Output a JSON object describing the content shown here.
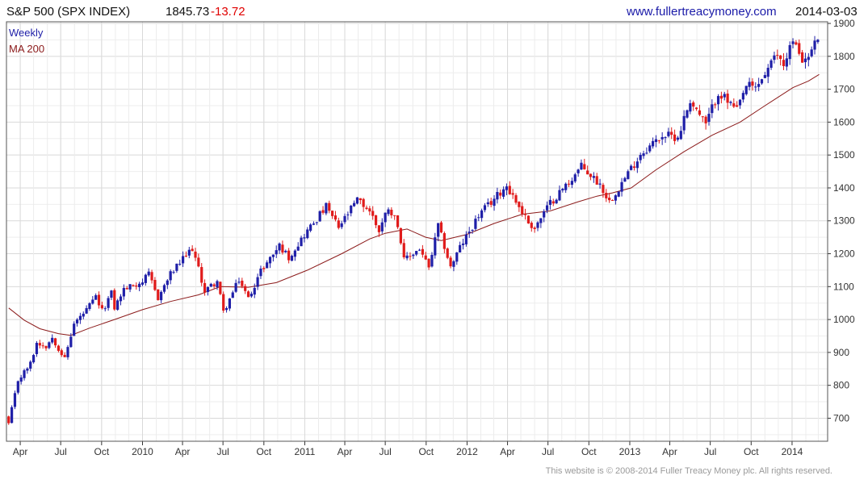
{
  "header": {
    "title": "S&P 500 (SPX INDEX)",
    "price": "1845.73",
    "change": "-13.72",
    "site": "www.fullertreacymoney.com",
    "date": "2014-03-03"
  },
  "footer": {
    "copyright": "This website is © 2008-2014 Fuller Treacy Money plc. All rights reserved."
  },
  "colors": {
    "up": "#1f1fa8",
    "down": "#e01b1b",
    "ma": "#8b1a1a",
    "grid": "#d9d9d9",
    "axis": "#333333"
  },
  "chart_data": {
    "type": "candlestick",
    "legend": [
      "Weekly",
      "MA 200"
    ],
    "ylim": [
      630,
      1905
    ],
    "yticks": [
      700,
      800,
      900,
      1000,
      1100,
      1200,
      1300,
      1400,
      1500,
      1600,
      1700,
      1800,
      1900
    ],
    "xlim": [
      "2009-03-01",
      "2014-03-22"
    ],
    "xticks": [
      {
        "label": "Apr",
        "date": "2009-04-01"
      },
      {
        "label": "Jul",
        "date": "2009-07-01"
      },
      {
        "label": "Oct",
        "date": "2009-10-01"
      },
      {
        "label": "2010",
        "date": "2010-01-01"
      },
      {
        "label": "Apr",
        "date": "2010-04-01"
      },
      {
        "label": "Jul",
        "date": "2010-07-01"
      },
      {
        "label": "Oct",
        "date": "2010-10-01"
      },
      {
        "label": "2011",
        "date": "2011-01-01"
      },
      {
        "label": "Apr",
        "date": "2011-04-01"
      },
      {
        "label": "Jul",
        "date": "2011-07-01"
      },
      {
        "label": "Oct",
        "date": "2011-10-01"
      },
      {
        "label": "2012",
        "date": "2012-01-01"
      },
      {
        "label": "Apr",
        "date": "2012-04-01"
      },
      {
        "label": "Jul",
        "date": "2012-07-01"
      },
      {
        "label": "Oct",
        "date": "2012-10-01"
      },
      {
        "label": "2013",
        "date": "2013-01-01"
      },
      {
        "label": "Apr",
        "date": "2013-04-01"
      },
      {
        "label": "Jul",
        "date": "2013-07-01"
      },
      {
        "label": "Oct",
        "date": "2013-10-01"
      },
      {
        "label": "2014",
        "date": "2014-01-01"
      }
    ],
    "close_path": [
      [
        "2009-03-06",
        683
      ],
      [
        "2009-03-27",
        815
      ],
      [
        "2009-04-24",
        866
      ],
      [
        "2009-05-08",
        929
      ],
      [
        "2009-05-29",
        919
      ],
      [
        "2009-06-12",
        946
      ],
      [
        "2009-07-10",
        880
      ],
      [
        "2009-07-31",
        987
      ],
      [
        "2009-08-28",
        1028
      ],
      [
        "2009-09-18",
        1068
      ],
      [
        "2009-10-02",
        1025
      ],
      [
        "2009-10-23",
        1080
      ],
      [
        "2009-10-30",
        1036
      ],
      [
        "2009-11-20",
        1092
      ],
      [
        "2009-12-31",
        1115
      ],
      [
        "2010-01-15",
        1136
      ],
      [
        "2010-02-05",
        1066
      ],
      [
        "2010-03-05",
        1138
      ],
      [
        "2010-04-23",
        1217
      ],
      [
        "2010-05-21",
        1087
      ],
      [
        "2010-06-18",
        1117
      ],
      [
        "2010-07-02",
        1022
      ],
      [
        "2010-08-06",
        1121
      ],
      [
        "2010-08-27",
        1064
      ],
      [
        "2010-09-24",
        1148
      ],
      [
        "2010-11-05",
        1225
      ],
      [
        "2010-11-26",
        1189
      ],
      [
        "2010-12-31",
        1258
      ],
      [
        "2011-02-18",
        1343
      ],
      [
        "2011-03-18",
        1279
      ],
      [
        "2011-04-29",
        1363
      ],
      [
        "2011-05-27",
        1331
      ],
      [
        "2011-06-17",
        1271
      ],
      [
        "2011-07-08",
        1343
      ],
      [
        "2011-07-29",
        1292
      ],
      [
        "2011-08-12",
        1179
      ],
      [
        "2011-09-16",
        1216
      ],
      [
        "2011-10-07",
        1155
      ],
      [
        "2011-10-28",
        1285
      ],
      [
        "2011-11-25",
        1159
      ],
      [
        "2011-12-16",
        1219
      ],
      [
        "2012-01-27",
        1316
      ],
      [
        "2012-03-30",
        1408
      ],
      [
        "2012-05-18",
        1295
      ],
      [
        "2012-06-01",
        1278
      ],
      [
        "2012-07-06",
        1354
      ],
      [
        "2012-08-17",
        1418
      ],
      [
        "2012-09-14",
        1465
      ],
      [
        "2012-10-26",
        1411
      ],
      [
        "2012-11-16",
        1359
      ],
      [
        "2012-12-21",
        1430
      ],
      [
        "2013-01-25",
        1503
      ],
      [
        "2013-03-15",
        1560
      ],
      [
        "2013-04-19",
        1555
      ],
      [
        "2013-05-17",
        1667
      ],
      [
        "2013-06-21",
        1592
      ],
      [
        "2013-07-19",
        1692
      ],
      [
        "2013-08-30",
        1633
      ],
      [
        "2013-09-20",
        1710
      ],
      [
        "2013-10-11",
        1703
      ],
      [
        "2013-11-29",
        1806
      ],
      [
        "2013-12-13",
        1775
      ],
      [
        "2013-12-31",
        1848
      ],
      [
        "2014-01-31",
        1782
      ],
      [
        "2014-02-21",
        1836
      ],
      [
        "2014-02-28",
        1859
      ],
      [
        "2014-03-03",
        1846
      ]
    ],
    "ma200": [
      [
        "2009-03-06",
        1035
      ],
      [
        "2009-04-10",
        998
      ],
      [
        "2009-05-15",
        972
      ],
      [
        "2009-06-26",
        957
      ],
      [
        "2009-07-24",
        952
      ],
      [
        "2009-09-04",
        974
      ],
      [
        "2009-10-30",
        1000
      ],
      [
        "2010-01-01",
        1030
      ],
      [
        "2010-03-05",
        1055
      ],
      [
        "2010-05-07",
        1075
      ],
      [
        "2010-06-25",
        1100
      ],
      [
        "2010-08-27",
        1098
      ],
      [
        "2010-10-29",
        1112
      ],
      [
        "2011-01-07",
        1150
      ],
      [
        "2011-03-25",
        1200
      ],
      [
        "2011-05-27",
        1245
      ],
      [
        "2011-07-01",
        1262
      ],
      [
        "2011-08-19",
        1275
      ],
      [
        "2011-09-30",
        1250
      ],
      [
        "2011-11-04",
        1240
      ],
      [
        "2011-12-30",
        1258
      ],
      [
        "2012-03-02",
        1292
      ],
      [
        "2012-05-04",
        1320
      ],
      [
        "2012-07-06",
        1330
      ],
      [
        "2012-09-07",
        1358
      ],
      [
        "2012-10-19",
        1375
      ],
      [
        "2012-11-23",
        1385
      ],
      [
        "2013-01-04",
        1400
      ],
      [
        "2013-03-01",
        1455
      ],
      [
        "2013-05-03",
        1510
      ],
      [
        "2013-07-05",
        1560
      ],
      [
        "2013-09-06",
        1600
      ],
      [
        "2013-11-01",
        1650
      ],
      [
        "2014-01-03",
        1705
      ],
      [
        "2014-02-07",
        1725
      ],
      [
        "2014-03-03",
        1745
      ]
    ]
  }
}
